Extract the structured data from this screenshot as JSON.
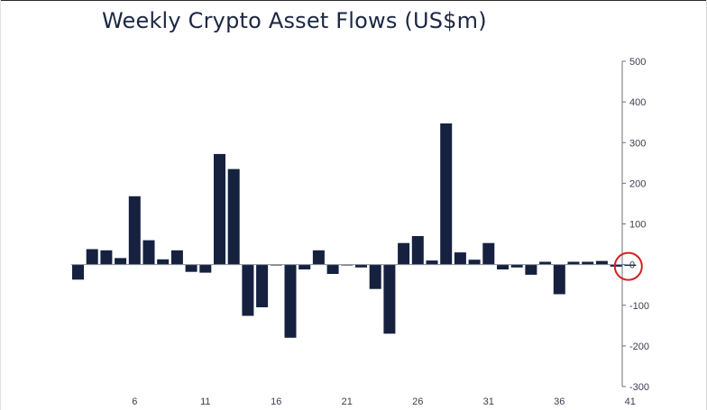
{
  "chart_data": {
    "type": "bar",
    "title": "Weekly Crypto Asset Flows (US$m)",
    "x": [
      2,
      3,
      4,
      5,
      6,
      7,
      8,
      9,
      10,
      11,
      12,
      13,
      14,
      15,
      16,
      17,
      18,
      19,
      20,
      21,
      22,
      23,
      24,
      25,
      26,
      27,
      28,
      29,
      30,
      31,
      32,
      33,
      34,
      35,
      36,
      37,
      38,
      39,
      40,
      41
    ],
    "values": [
      -37,
      38,
      35,
      16,
      168,
      60,
      13,
      35,
      -18,
      -20,
      272,
      235,
      -126,
      -105,
      -1,
      -180,
      -12,
      35,
      -23,
      -2,
      -7,
      -60,
      -170,
      53,
      70,
      10,
      347,
      30,
      12,
      53,
      -12,
      -7,
      -25,
      7,
      -73,
      7,
      7,
      9,
      -5,
      -3
    ],
    "xticks": [
      6,
      11,
      16,
      21,
      26,
      31,
      36,
      41
    ],
    "yticks": [
      500,
      400,
      300,
      200,
      100,
      0,
      -100,
      -200,
      -300
    ],
    "ylim": [
      -300,
      500
    ],
    "bar_color": "#15213f",
    "axis_position": "right",
    "grid": false,
    "annotation": "red circle highlighting final week"
  }
}
